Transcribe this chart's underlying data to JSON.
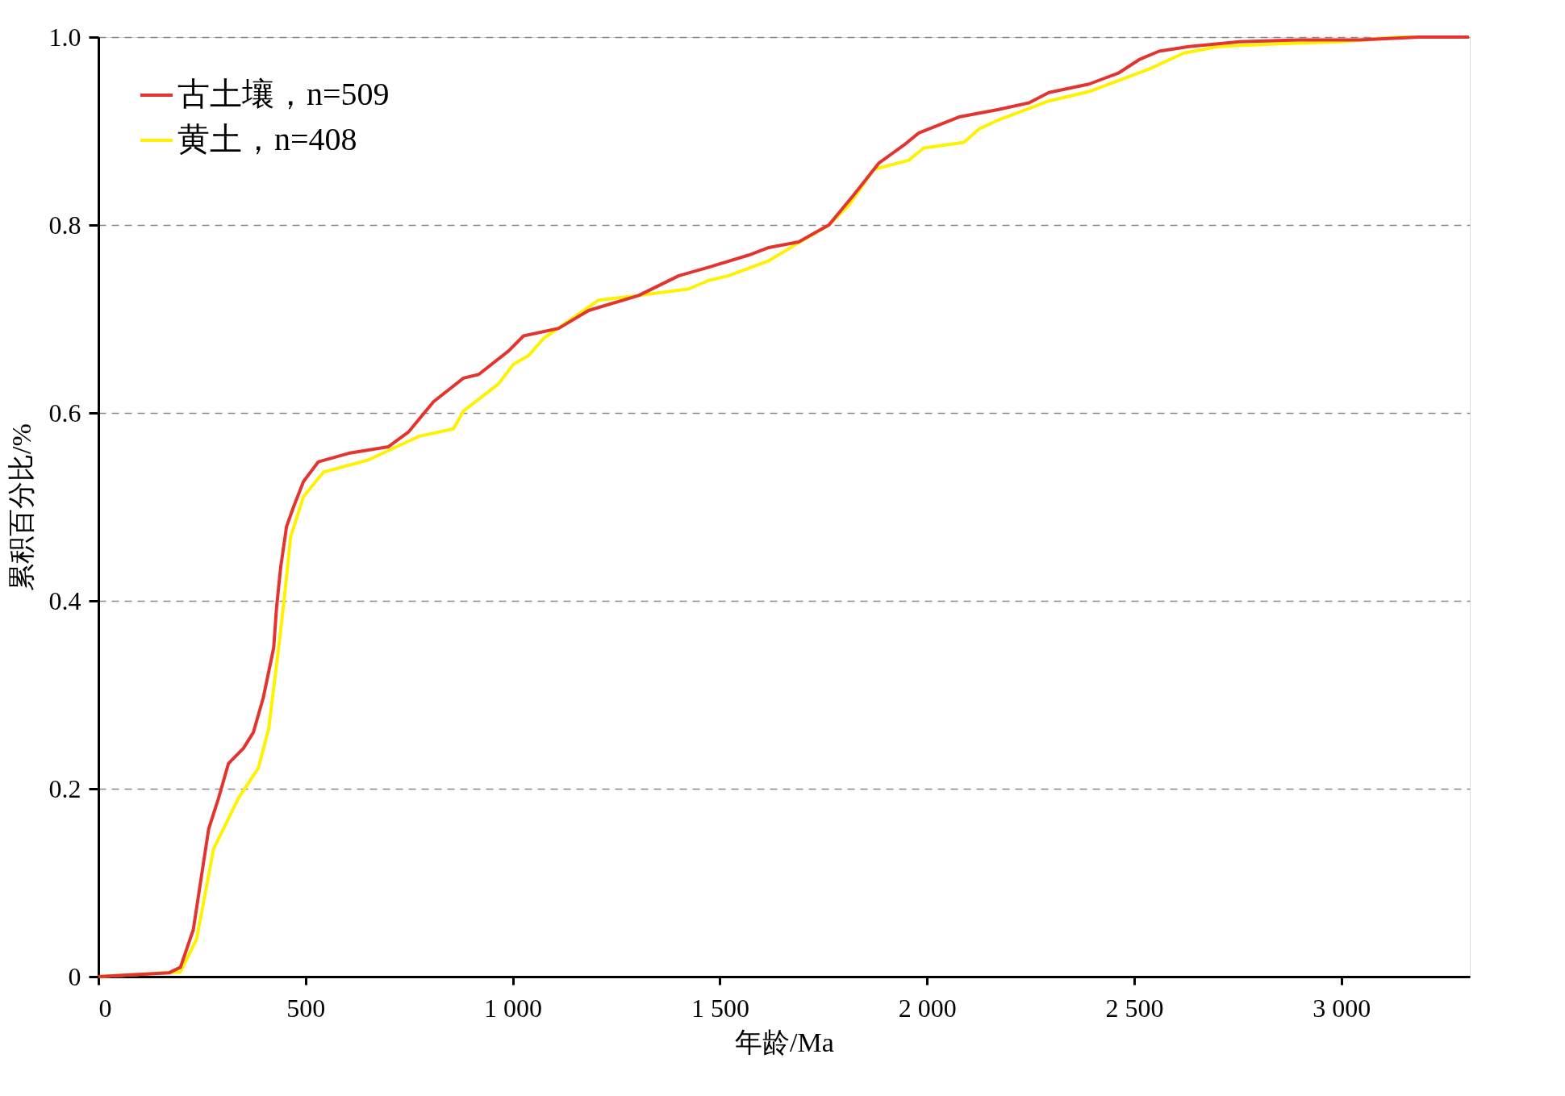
{
  "chart_data": {
    "type": "line",
    "xlabel": "年龄/Ma",
    "ylabel": "累积百分比/%",
    "xlim": [
      0,
      3310
    ],
    "ylim": [
      0,
      1.0
    ],
    "xticks": [
      0,
      500,
      {
        "value": 1000,
        "label": "1 000"
      },
      {
        "value": 1500,
        "label": "1 500"
      },
      {
        "value": 2000,
        "label": "2 000"
      },
      {
        "value": 2500,
        "label": "2 500"
      },
      {
        "value": 3000,
        "label": "3 000"
      }
    ],
    "yticks": [
      0,
      {
        "value": 0.2,
        "label": "0.2"
      },
      {
        "value": 0.4,
        "label": "0.4"
      },
      {
        "value": 0.6,
        "label": "0.6"
      },
      {
        "value": 0.8,
        "label": "0.8"
      },
      {
        "value": 1.0,
        "label": "1.0"
      }
    ],
    "grid": "y",
    "legend": "top left",
    "line_style": "solid",
    "marker": "none",
    "series": [
      {
        "name": "古土壤，n=509",
        "color": "#e3342f",
        "x": [
          0,
          170,
          198,
          229,
          266,
          290,
          314,
          350,
          374,
          398,
          423,
          430,
          440,
          454,
          471,
          495,
          531,
          604,
          700,
          749,
          809,
          881,
          918,
          990,
          1026,
          1111,
          1183,
          1304,
          1401,
          1473,
          1570,
          1618,
          1690,
          1763,
          1823,
          1884,
          1944,
          1980,
          2077,
          2173,
          2246,
          2294,
          2391,
          2463,
          2512,
          2560,
          2632,
          2753,
          2898,
          3043,
          3188,
          3308
        ],
        "values": [
          0,
          0.004,
          0.01,
          0.05,
          0.157,
          0.19,
          0.227,
          0.243,
          0.26,
          0.297,
          0.35,
          0.393,
          0.436,
          0.479,
          0.5,
          0.527,
          0.548,
          0.557,
          0.564,
          0.58,
          0.612,
          0.637,
          0.641,
          0.666,
          0.682,
          0.69,
          0.709,
          0.725,
          0.746,
          0.755,
          0.768,
          0.776,
          0.782,
          0.8,
          0.832,
          0.866,
          0.885,
          0.898,
          0.915,
          0.923,
          0.93,
          0.941,
          0.95,
          0.962,
          0.976,
          0.985,
          0.99,
          0.995,
          0.997,
          0.997,
          1.0,
          1.0
        ]
      },
      {
        "name": "黄土，n=408",
        "color": "#fff200",
        "x": [
          0,
          198,
          237,
          278,
          338,
          386,
          411,
          435,
          449,
          464,
          495,
          543,
          652,
          773,
          857,
          881,
          966,
          1002,
          1038,
          1074,
          1135,
          1207,
          1304,
          1425,
          1473,
          1521,
          1618,
          1690,
          1763,
          1811,
          1871,
          1956,
          1992,
          2089,
          2125,
          2173,
          2294,
          2391,
          2536,
          2620,
          2705,
          2850,
          2995,
          3140,
          3308
        ],
        "values": [
          0,
          0.005,
          0.04,
          0.136,
          0.19,
          0.222,
          0.264,
          0.35,
          0.404,
          0.468,
          0.511,
          0.537,
          0.55,
          0.575,
          0.583,
          0.602,
          0.631,
          0.652,
          0.661,
          0.679,
          0.698,
          0.72,
          0.725,
          0.732,
          0.741,
          0.746,
          0.762,
          0.781,
          0.8,
          0.821,
          0.859,
          0.869,
          0.882,
          0.888,
          0.902,
          0.912,
          0.932,
          0.942,
          0.966,
          0.983,
          0.99,
          0.993,
          0.995,
          1.0,
          1.0
        ]
      }
    ]
  }
}
